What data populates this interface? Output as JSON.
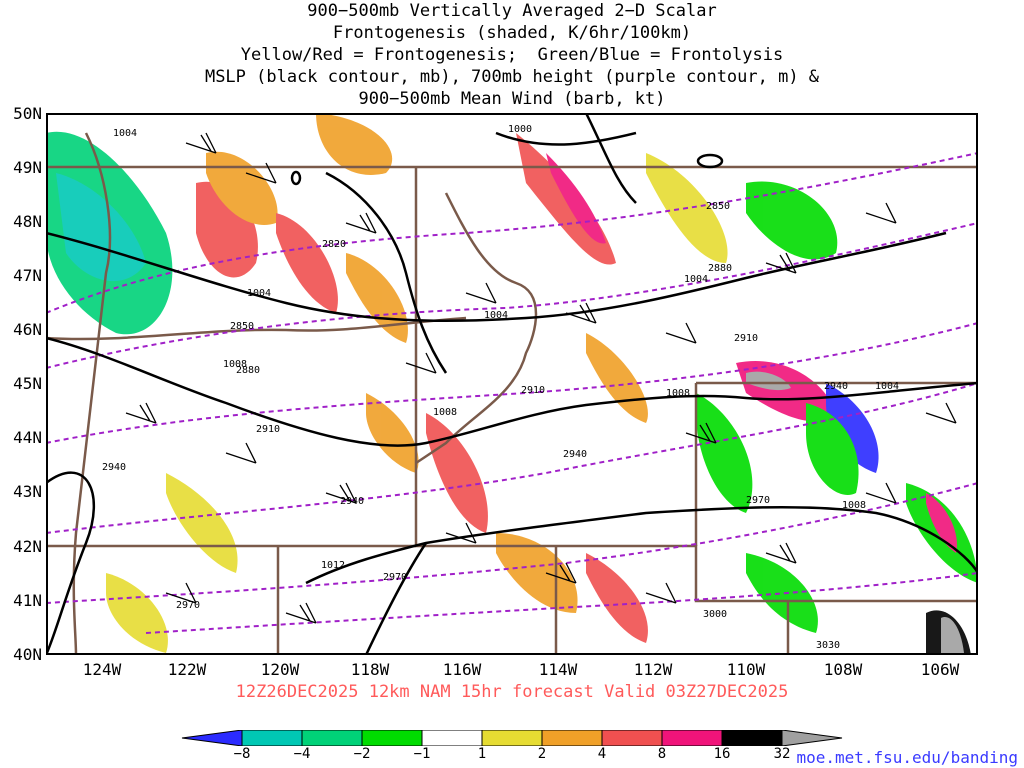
{
  "title_lines": [
    "900−500mb Vertically Averaged 2−D Scalar",
    "Frontogenesis (shaded, K/6hr/100km)",
    "Yellow/Red = Frontogenesis;  Green/Blue = Frontolysis",
    "MSLP (black contour, mb), 700mb height (purple contour, m) &",
    "900−500mb Mean Wind (barb, kt)"
  ],
  "lat_labels": [
    "50N",
    "49N",
    "48N",
    "47N",
    "46N",
    "45N",
    "44N",
    "43N",
    "42N",
    "41N",
    "40N"
  ],
  "lon_labels": [
    "124W",
    "122W",
    "120W",
    "118W",
    "116W",
    "114W",
    "112W",
    "110W",
    "108W",
    "106W"
  ],
  "valid_line": "12Z26DEC2025 12km NAM 15hr forecast Valid 03Z27DEC2025",
  "colorbar_labels": [
    "−8",
    "−4",
    "−2",
    "−1",
    "1",
    "2",
    "4",
    "8",
    "16",
    "32"
  ],
  "colorbar_colors": [
    "#2b2bff",
    "#00c8b4",
    "#00d278",
    "#00dc00",
    "#ffffff",
    "#e6dc32",
    "#f0a028",
    "#f05050",
    "#f0147a",
    "#000000",
    "#a0a0a0"
  ],
  "contour_labels_mslp": [
    "1004",
    "1000",
    "1004",
    "1004",
    "1004",
    "1008",
    "1008",
    "1008",
    "1004",
    "1008",
    "1012"
  ],
  "contour_labels_700mb": [
    "2820",
    "2850",
    "2850",
    "2880",
    "2880",
    "2910",
    "2910",
    "2940",
    "2940",
    "2940",
    "2940",
    "2970",
    "2970",
    "2970",
    "3000",
    "3030",
    "2910"
  ],
  "credit": "moe.met.fsu.edu/banding"
}
